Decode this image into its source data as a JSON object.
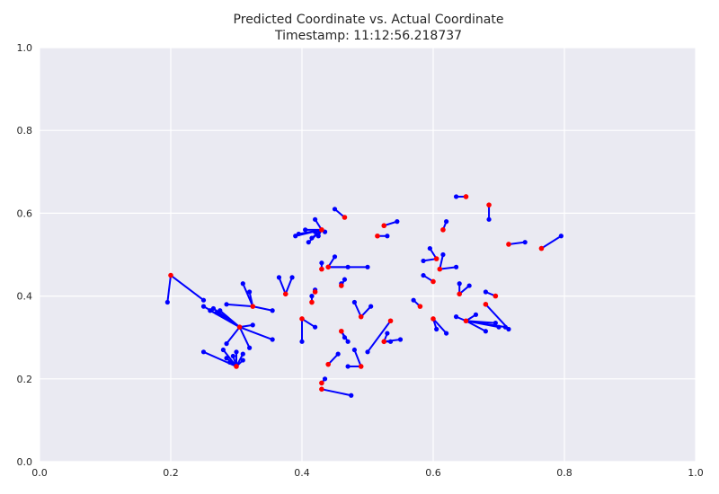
{
  "chart_data": {
    "type": "scatter",
    "title": "Predicted Coordinate vs. Actual Coordinate",
    "subtitle": "Timestamp: 11:12:56.218737",
    "xlim": [
      0,
      1
    ],
    "ylim": [
      0,
      1
    ],
    "xticks": [
      "0.0",
      "0.2",
      "0.4",
      "0.6",
      "0.8",
      "1.0"
    ],
    "yticks": [
      "0.0",
      "0.2",
      "0.4",
      "0.6",
      "0.8",
      "1.0"
    ],
    "grid": true,
    "colors": {
      "background": "#eaeaf2",
      "grid": "#ffffff",
      "predicted": "#0000ff",
      "actual": "#ff0000",
      "line": "#0000ff"
    },
    "groups": [
      {
        "actual": [
          0.2,
          0.45
        ],
        "predicted": [
          [
            0.195,
            0.385
          ],
          [
            0.25,
            0.39
          ]
        ]
      },
      {
        "actual": [
          0.3,
          0.23
        ],
        "predicted": [
          [
            0.25,
            0.265
          ],
          [
            0.28,
            0.27
          ],
          [
            0.285,
            0.25
          ],
          [
            0.29,
            0.24
          ],
          [
            0.295,
            0.255
          ],
          [
            0.3,
            0.265
          ],
          [
            0.31,
            0.26
          ],
          [
            0.31,
            0.245
          ]
        ]
      },
      {
        "actual": [
          0.305,
          0.325
        ],
        "predicted": [
          [
            0.25,
            0.375
          ],
          [
            0.26,
            0.365
          ],
          [
            0.265,
            0.37
          ],
          [
            0.27,
            0.36
          ],
          [
            0.275,
            0.365
          ],
          [
            0.285,
            0.285
          ],
          [
            0.32,
            0.275
          ],
          [
            0.325,
            0.33
          ],
          [
            0.355,
            0.295
          ]
        ]
      },
      {
        "actual": [
          0.325,
          0.375
        ],
        "predicted": [
          [
            0.285,
            0.38
          ],
          [
            0.31,
            0.43
          ],
          [
            0.32,
            0.41
          ],
          [
            0.355,
            0.365
          ]
        ]
      },
      {
        "actual": [
          0.375,
          0.405
        ],
        "predicted": [
          [
            0.365,
            0.445
          ],
          [
            0.385,
            0.445
          ]
        ]
      },
      {
        "actual": [
          0.4,
          0.345
        ],
        "predicted": [
          [
            0.4,
            0.29
          ],
          [
            0.42,
            0.325
          ]
        ]
      },
      {
        "actual": [
          0.415,
          0.385
        ],
        "predicted": [
          [
            0.415,
            0.4
          ]
        ]
      },
      {
        "actual": [
          0.42,
          0.41
        ],
        "predicted": [
          [
            0.42,
            0.415
          ]
        ]
      },
      {
        "actual": [
          0.43,
          0.56
        ],
        "predicted": [
          [
            0.39,
            0.545
          ],
          [
            0.395,
            0.55
          ],
          [
            0.405,
            0.56
          ],
          [
            0.41,
            0.53
          ],
          [
            0.415,
            0.54
          ],
          [
            0.42,
            0.555
          ],
          [
            0.42,
            0.585
          ],
          [
            0.425,
            0.545
          ],
          [
            0.435,
            0.555
          ]
        ]
      },
      {
        "actual": [
          0.465,
          0.59
        ],
        "predicted": [
          [
            0.45,
            0.61
          ]
        ]
      },
      {
        "actual": [
          0.43,
          0.465
        ],
        "predicted": [
          [
            0.43,
            0.48
          ]
        ]
      },
      {
        "actual": [
          0.44,
          0.47
        ],
        "predicted": [
          [
            0.45,
            0.495
          ],
          [
            0.47,
            0.47
          ],
          [
            0.5,
            0.47
          ]
        ]
      },
      {
        "actual": [
          0.46,
          0.425
        ],
        "predicted": [
          [
            0.46,
            0.43
          ],
          [
            0.465,
            0.44
          ]
        ]
      },
      {
        "actual": [
          0.46,
          0.315
        ],
        "predicted": [
          [
            0.465,
            0.3
          ],
          [
            0.47,
            0.29
          ]
        ]
      },
      {
        "actual": [
          0.49,
          0.35
        ],
        "predicted": [
          [
            0.48,
            0.385
          ],
          [
            0.505,
            0.375
          ]
        ]
      },
      {
        "actual": [
          0.44,
          0.235
        ],
        "predicted": [
          [
            0.455,
            0.26
          ]
        ]
      },
      {
        "actual": [
          0.49,
          0.23
        ],
        "predicted": [
          [
            0.47,
            0.23
          ],
          [
            0.48,
            0.27
          ]
        ]
      },
      {
        "actual": [
          0.43,
          0.19
        ],
        "predicted": [
          [
            0.435,
            0.2
          ]
        ]
      },
      {
        "actual": [
          0.43,
          0.175
        ],
        "predicted": [
          [
            0.475,
            0.16
          ]
        ]
      },
      {
        "actual": [
          0.535,
          0.34
        ],
        "predicted": [
          [
            0.5,
            0.265
          ]
        ]
      },
      {
        "actual": [
          0.525,
          0.29
        ],
        "predicted": [
          [
            0.53,
            0.31
          ],
          [
            0.535,
            0.29
          ],
          [
            0.55,
            0.295
          ]
        ]
      },
      {
        "actual": [
          0.515,
          0.545
        ],
        "predicted": [
          [
            0.53,
            0.545
          ]
        ]
      },
      {
        "actual": [
          0.525,
          0.57
        ],
        "predicted": [
          [
            0.545,
            0.58
          ]
        ]
      },
      {
        "actual": [
          0.58,
          0.375
        ],
        "predicted": [
          [
            0.57,
            0.39
          ]
        ]
      },
      {
        "actual": [
          0.6,
          0.345
        ],
        "predicted": [
          [
            0.605,
            0.32
          ],
          [
            0.62,
            0.31
          ]
        ]
      },
      {
        "actual": [
          0.6,
          0.435
        ],
        "predicted": [
          [
            0.585,
            0.45
          ]
        ]
      },
      {
        "actual": [
          0.605,
          0.49
        ],
        "predicted": [
          [
            0.585,
            0.485
          ],
          [
            0.595,
            0.515
          ]
        ]
      },
      {
        "actual": [
          0.61,
          0.465
        ],
        "predicted": [
          [
            0.615,
            0.5
          ],
          [
            0.635,
            0.47
          ]
        ]
      },
      {
        "actual": [
          0.615,
          0.56
        ],
        "predicted": [
          [
            0.62,
            0.58
          ]
        ]
      },
      {
        "actual": [
          0.65,
          0.64
        ],
        "predicted": [
          [
            0.635,
            0.64
          ]
        ]
      },
      {
        "actual": [
          0.64,
          0.405
        ],
        "predicted": [
          [
            0.64,
            0.43
          ],
          [
            0.655,
            0.425
          ]
        ]
      },
      {
        "actual": [
          0.65,
          0.34
        ],
        "predicted": [
          [
            0.635,
            0.35
          ],
          [
            0.665,
            0.355
          ],
          [
            0.68,
            0.315
          ],
          [
            0.695,
            0.335
          ],
          [
            0.7,
            0.325
          ],
          [
            0.71,
            0.325
          ]
        ]
      },
      {
        "actual": [
          0.68,
          0.38
        ],
        "predicted": [
          [
            0.715,
            0.32
          ]
        ]
      },
      {
        "actual": [
          0.685,
          0.62
        ],
        "predicted": [
          [
            0.685,
            0.585
          ]
        ]
      },
      {
        "actual": [
          0.695,
          0.4
        ],
        "predicted": [
          [
            0.68,
            0.41
          ]
        ]
      },
      {
        "actual": [
          0.715,
          0.525
        ],
        "predicted": [
          [
            0.74,
            0.53
          ]
        ]
      },
      {
        "actual": [
          0.765,
          0.515
        ],
        "predicted": [
          [
            0.795,
            0.545
          ]
        ]
      }
    ]
  }
}
